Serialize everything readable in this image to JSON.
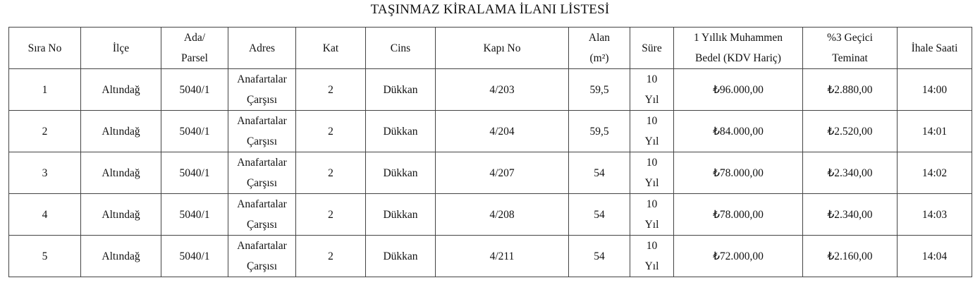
{
  "title": "TAŞINMAZ KİRALAMA İLANI LİSTESİ",
  "columns": [
    "Sıra No",
    "İlçe",
    "Ada/\nParsel",
    "Adres",
    "Kat",
    "Cins",
    "Kapı No",
    "Alan\n(m²)",
    "Süre",
    "1 Yıllık Muhammen\nBedel (KDV Hariç)",
    "%3 Geçici\nTeminat",
    "İhale Saati"
  ],
  "rows": [
    [
      "1",
      "Altındağ",
      "5040/1",
      "Anafartalar\nÇarşısı",
      "2",
      "Dükkan",
      "4/203",
      "59,5",
      "10\nYıl",
      "₺96.000,00",
      "₺2.880,00",
      "14:00"
    ],
    [
      "2",
      "Altındağ",
      "5040/1",
      "Anafartalar\nÇarşısı",
      "2",
      "Dükkan",
      "4/204",
      "59,5",
      "10\nYıl",
      "₺84.000,00",
      "₺2.520,00",
      "14:01"
    ],
    [
      "3",
      "Altındağ",
      "5040/1",
      "Anafartalar\nÇarşısı",
      "2",
      "Dükkan",
      "4/207",
      "54",
      "10\nYıl",
      "₺78.000,00",
      "₺2.340,00",
      "14:02"
    ],
    [
      "4",
      "Altındağ",
      "5040/1",
      "Anafartalar\nÇarşısı",
      "2",
      "Dükkan",
      "4/208",
      "54",
      "10\nYıl",
      "₺78.000,00",
      "₺2.340,00",
      "14:03"
    ],
    [
      "5",
      "Altındağ",
      "5040/1",
      "Anafartalar\nÇarşısı",
      "2",
      "Dükkan",
      "4/211",
      "54",
      "10\nYıl",
      "₺72.000,00",
      "₺2.160,00",
      "14:04"
    ]
  ]
}
